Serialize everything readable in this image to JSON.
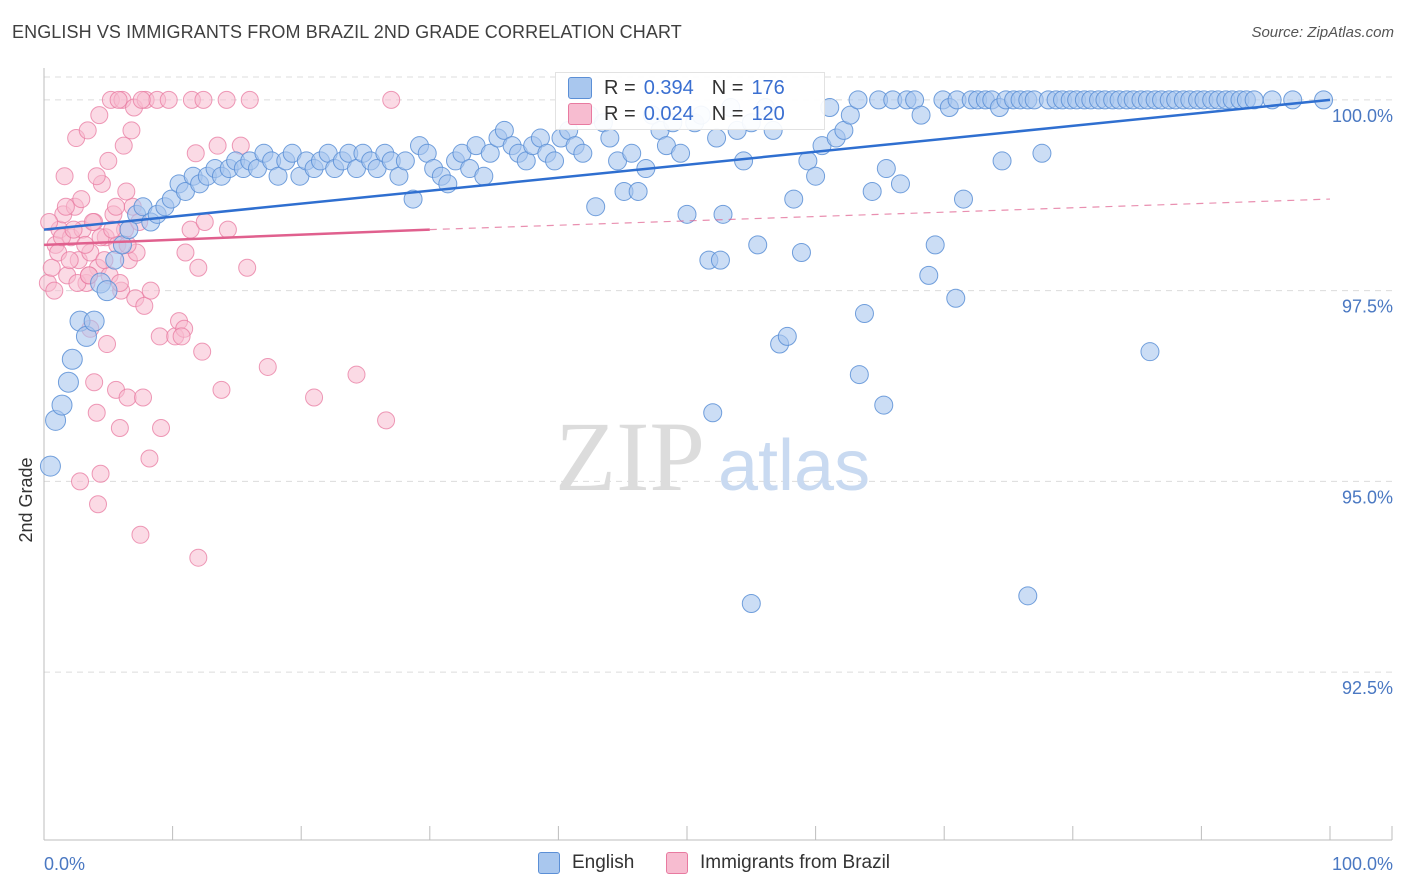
{
  "header": {
    "title": "ENGLISH VS IMMIGRANTS FROM BRAZIL 2ND GRADE CORRELATION CHART",
    "source": "Source: ZipAtlas.com"
  },
  "watermark": {
    "zip": "ZIP",
    "atlas": "atlas"
  },
  "stats": {
    "english": {
      "r_label": "R =",
      "r_value": "0.394",
      "n_label": "N =",
      "n_value": "176"
    },
    "brazil": {
      "r_label": "R =",
      "r_value": "0.024",
      "n_label": "N =",
      "n_value": "120"
    }
  },
  "legend": {
    "english": "English",
    "brazil": "Immigrants from Brazil"
  },
  "colors": {
    "english_fill": "#a9c7ee",
    "english_stroke": "#5b8fd6",
    "english_line": "#2f6fd0",
    "brazil_fill": "#f7bcd0",
    "brazil_stroke": "#e87aa0",
    "brazil_line": "#e0608e",
    "grid": "#dcdcdc",
    "tick_text": "#4a78c2"
  },
  "chart_data": {
    "type": "scatter",
    "title": "ENGLISH VS IMMIGRANTS FROM BRAZIL 2ND GRADE CORRELATION CHART",
    "xlabel": "",
    "ylabel": "2nd Grade",
    "xlim": [
      0,
      100
    ],
    "ylim": [
      90.3,
      100.3
    ],
    "x_tick_labels": [
      "0.0%",
      "100.0%"
    ],
    "y_ticks": [
      {
        "value": 92.5,
        "label": "92.5%"
      },
      {
        "value": 95.0,
        "label": "95.0%"
      },
      {
        "value": 97.5,
        "label": "97.5%"
      },
      {
        "value": 100.0,
        "label": "100.0%"
      }
    ],
    "series": [
      {
        "name": "English",
        "r": 0.394,
        "n": 176,
        "trend": {
          "x": [
            0,
            100
          ],
          "y": [
            98.3,
            100.0
          ]
        },
        "points": [
          [
            0.5,
            95.2
          ],
          [
            0.9,
            95.8
          ],
          [
            1.4,
            96.0
          ],
          [
            1.9,
            96.3
          ],
          [
            2.2,
            96.6
          ],
          [
            2.8,
            97.1
          ],
          [
            3.3,
            96.9
          ],
          [
            3.9,
            97.1
          ],
          [
            4.4,
            97.6
          ],
          [
            4.9,
            97.5
          ],
          [
            5.5,
            97.9
          ],
          [
            6.1,
            98.1
          ],
          [
            6.6,
            98.3
          ],
          [
            7.2,
            98.5
          ],
          [
            7.7,
            98.6
          ],
          [
            8.3,
            98.4
          ],
          [
            8.8,
            98.5
          ],
          [
            9.4,
            98.6
          ],
          [
            9.9,
            98.7
          ],
          [
            10.5,
            98.9
          ],
          [
            11.0,
            98.8
          ],
          [
            11.6,
            99.0
          ],
          [
            12.1,
            98.9
          ],
          [
            12.7,
            99.0
          ],
          [
            13.3,
            99.1
          ],
          [
            13.8,
            99.0
          ],
          [
            14.4,
            99.1
          ],
          [
            14.9,
            99.2
          ],
          [
            15.5,
            99.1
          ],
          [
            16.0,
            99.2
          ],
          [
            16.6,
            99.1
          ],
          [
            17.1,
            99.3
          ],
          [
            17.7,
            99.2
          ],
          [
            18.2,
            99.0
          ],
          [
            18.8,
            99.2
          ],
          [
            19.3,
            99.3
          ],
          [
            19.9,
            99.0
          ],
          [
            20.4,
            99.2
          ],
          [
            21.0,
            99.1
          ],
          [
            21.5,
            99.2
          ],
          [
            22.1,
            99.3
          ],
          [
            22.6,
            99.1
          ],
          [
            23.2,
            99.2
          ],
          [
            23.7,
            99.3
          ],
          [
            24.3,
            99.1
          ],
          [
            24.8,
            99.3
          ],
          [
            25.4,
            99.2
          ],
          [
            25.9,
            99.1
          ],
          [
            26.5,
            99.3
          ],
          [
            27.0,
            99.2
          ],
          [
            27.6,
            99.0
          ],
          [
            28.1,
            99.2
          ],
          [
            28.7,
            98.7
          ],
          [
            29.2,
            99.4
          ],
          [
            29.8,
            99.3
          ],
          [
            30.3,
            99.1
          ],
          [
            30.9,
            99.0
          ],
          [
            31.4,
            98.9
          ],
          [
            32.0,
            99.2
          ],
          [
            32.5,
            99.3
          ],
          [
            33.1,
            99.1
          ],
          [
            33.6,
            99.4
          ],
          [
            34.2,
            99.0
          ],
          [
            34.7,
            99.3
          ],
          [
            35.3,
            99.5
          ],
          [
            35.8,
            99.6
          ],
          [
            36.4,
            99.4
          ],
          [
            36.9,
            99.3
          ],
          [
            37.5,
            99.2
          ],
          [
            38.0,
            99.4
          ],
          [
            38.6,
            99.5
          ],
          [
            39.1,
            99.3
          ],
          [
            39.7,
            99.2
          ],
          [
            40.2,
            99.5
          ],
          [
            40.8,
            99.6
          ],
          [
            41.3,
            99.4
          ],
          [
            41.9,
            99.3
          ],
          [
            42.4,
            99.8
          ],
          [
            42.9,
            98.6
          ],
          [
            43.5,
            99.7
          ],
          [
            44.0,
            99.5
          ],
          [
            44.6,
            99.2
          ],
          [
            45.1,
            98.8
          ],
          [
            45.7,
            99.3
          ],
          [
            46.2,
            98.8
          ],
          [
            46.8,
            99.1
          ],
          [
            47.3,
            99.8
          ],
          [
            47.9,
            99.6
          ],
          [
            48.4,
            99.4
          ],
          [
            48.9,
            99.7
          ],
          [
            49.5,
            99.3
          ],
          [
            50.0,
            98.5
          ],
          [
            50.6,
            99.7
          ],
          [
            51.1,
            99.8
          ],
          [
            51.7,
            97.9
          ],
          [
            52.3,
            99.5
          ],
          [
            52.8,
            98.5
          ],
          [
            53.4,
            99.9
          ],
          [
            53.9,
            99.6
          ],
          [
            54.4,
            99.2
          ],
          [
            55.0,
            99.7
          ],
          [
            55.5,
            98.1
          ],
          [
            56.1,
            99.9
          ],
          [
            56.7,
            99.6
          ],
          [
            57.2,
            96.8
          ],
          [
            57.8,
            96.9
          ],
          [
            58.3,
            98.7
          ],
          [
            58.9,
            98.0
          ],
          [
            59.4,
            99.2
          ],
          [
            60.0,
            99.0
          ],
          [
            60.5,
            99.4
          ],
          [
            61.1,
            99.9
          ],
          [
            61.6,
            99.5
          ],
          [
            62.2,
            99.6
          ],
          [
            62.7,
            99.8
          ],
          [
            63.3,
            100.0
          ],
          [
            63.8,
            97.2
          ],
          [
            64.4,
            98.8
          ],
          [
            64.9,
            100.0
          ],
          [
            65.5,
            99.1
          ],
          [
            66.0,
            100.0
          ],
          [
            66.6,
            98.9
          ],
          [
            67.1,
            100.0
          ],
          [
            67.7,
            100.0
          ],
          [
            68.2,
            99.8
          ],
          [
            68.8,
            97.7
          ],
          [
            69.3,
            98.1
          ],
          [
            69.9,
            100.0
          ],
          [
            70.4,
            99.9
          ],
          [
            71.0,
            100.0
          ],
          [
            71.5,
            98.7
          ],
          [
            72.1,
            100.0
          ],
          [
            72.6,
            100.0
          ],
          [
            73.2,
            100.0
          ],
          [
            73.7,
            100.0
          ],
          [
            74.3,
            99.9
          ],
          [
            74.8,
            100.0
          ],
          [
            75.4,
            100.0
          ],
          [
            75.9,
            100.0
          ],
          [
            76.5,
            100.0
          ],
          [
            77.0,
            100.0
          ],
          [
            77.6,
            99.3
          ],
          [
            78.1,
            100.0
          ],
          [
            78.7,
            100.0
          ],
          [
            79.2,
            100.0
          ],
          [
            79.8,
            100.0
          ],
          [
            80.3,
            100.0
          ],
          [
            80.9,
            100.0
          ],
          [
            81.4,
            100.0
          ],
          [
            82.0,
            100.0
          ],
          [
            82.5,
            100.0
          ],
          [
            83.1,
            100.0
          ],
          [
            83.6,
            100.0
          ],
          [
            84.2,
            100.0
          ],
          [
            84.7,
            100.0
          ],
          [
            85.3,
            100.0
          ],
          [
            85.8,
            100.0
          ],
          [
            86.4,
            100.0
          ],
          [
            86.9,
            100.0
          ],
          [
            87.5,
            100.0
          ],
          [
            88.0,
            100.0
          ],
          [
            88.6,
            100.0
          ],
          [
            89.1,
            100.0
          ],
          [
            89.7,
            100.0
          ],
          [
            90.2,
            100.0
          ],
          [
            90.8,
            100.0
          ],
          [
            91.3,
            100.0
          ],
          [
            91.9,
            100.0
          ],
          [
            92.4,
            100.0
          ],
          [
            93.0,
            100.0
          ],
          [
            93.5,
            100.0
          ],
          [
            94.1,
            100.0
          ],
          [
            95.5,
            100.0
          ],
          [
            97.1,
            100.0
          ],
          [
            99.5,
            100.0
          ],
          [
            86.0,
            96.7
          ],
          [
            76.5,
            93.5
          ],
          [
            55.0,
            93.4
          ],
          [
            63.4,
            96.4
          ],
          [
            52.0,
            95.9
          ],
          [
            65.3,
            96.0
          ],
          [
            70.9,
            97.4
          ],
          [
            74.5,
            99.2
          ],
          [
            52.6,
            97.9
          ]
        ]
      },
      {
        "name": "Immigrants from Brazil",
        "r": 0.024,
        "n": 120,
        "trend": {
          "x": [
            0,
            30
          ],
          "y": [
            98.1,
            98.3
          ]
        },
        "trend_dashed": {
          "x": [
            30,
            100
          ],
          "y": [
            98.3,
            98.7
          ]
        },
        "points": [
          [
            0.3,
            97.6
          ],
          [
            0.6,
            97.8
          ],
          [
            0.9,
            98.1
          ],
          [
            1.2,
            98.3
          ],
          [
            1.5,
            98.5
          ],
          [
            1.8,
            97.7
          ],
          [
            2.1,
            98.2
          ],
          [
            2.4,
            98.6
          ],
          [
            2.7,
            97.9
          ],
          [
            3.0,
            98.3
          ],
          [
            3.3,
            97.6
          ],
          [
            3.6,
            98.0
          ],
          [
            3.9,
            98.4
          ],
          [
            4.2,
            97.8
          ],
          [
            4.5,
            98.9
          ],
          [
            4.8,
            98.2
          ],
          [
            5.1,
            97.7
          ],
          [
            5.4,
            98.5
          ],
          [
            5.7,
            98.1
          ],
          [
            6.0,
            97.5
          ],
          [
            6.3,
            98.3
          ],
          [
            6.6,
            97.9
          ],
          [
            6.9,
            98.6
          ],
          [
            7.2,
            98.0
          ],
          [
            0.4,
            98.4
          ],
          [
            0.8,
            97.5
          ],
          [
            1.1,
            98.0
          ],
          [
            1.4,
            98.2
          ],
          [
            1.7,
            98.6
          ],
          [
            2.0,
            97.9
          ],
          [
            2.3,
            98.3
          ],
          [
            2.6,
            97.6
          ],
          [
            2.9,
            98.7
          ],
          [
            3.2,
            98.1
          ],
          [
            3.5,
            97.7
          ],
          [
            3.8,
            98.4
          ],
          [
            4.1,
            99.0
          ],
          [
            4.4,
            98.2
          ],
          [
            4.7,
            97.9
          ],
          [
            5.0,
            99.2
          ],
          [
            5.3,
            98.3
          ],
          [
            5.6,
            98.6
          ],
          [
            5.9,
            97.6
          ],
          [
            6.2,
            99.4
          ],
          [
            6.5,
            98.1
          ],
          [
            6.8,
            99.6
          ],
          [
            7.1,
            97.4
          ],
          [
            7.4,
            98.4
          ],
          [
            1.6,
            99.0
          ],
          [
            2.5,
            99.5
          ],
          [
            3.4,
            99.6
          ],
          [
            4.3,
            99.8
          ],
          [
            5.2,
            100.0
          ],
          [
            6.1,
            100.0
          ],
          [
            7.0,
            99.9
          ],
          [
            7.9,
            100.0
          ],
          [
            8.8,
            100.0
          ],
          [
            9.7,
            100.0
          ],
          [
            11.5,
            100.0
          ],
          [
            12.4,
            100.0
          ],
          [
            14.2,
            100.0
          ],
          [
            16.0,
            100.0
          ],
          [
            27.0,
            100.0
          ],
          [
            5.8,
            100.0
          ],
          [
            7.6,
            100.0
          ],
          [
            11.8,
            99.3
          ],
          [
            13.5,
            99.4
          ],
          [
            15.3,
            99.4
          ],
          [
            6.4,
            98.8
          ],
          [
            4.9,
            96.8
          ],
          [
            3.6,
            97.0
          ],
          [
            7.8,
            97.3
          ],
          [
            8.3,
            97.5
          ],
          [
            9.0,
            96.9
          ],
          [
            10.2,
            96.9
          ],
          [
            10.5,
            97.1
          ],
          [
            11.0,
            98.0
          ],
          [
            11.4,
            98.3
          ],
          [
            12.0,
            97.8
          ],
          [
            12.5,
            98.4
          ],
          [
            14.3,
            98.3
          ],
          [
            15.8,
            97.8
          ],
          [
            3.9,
            96.3
          ],
          [
            5.6,
            96.2
          ],
          [
            6.5,
            96.1
          ],
          [
            7.7,
            96.1
          ],
          [
            9.1,
            95.7
          ],
          [
            8.2,
            95.3
          ],
          [
            4.1,
            95.9
          ],
          [
            5.9,
            95.7
          ],
          [
            2.8,
            95.0
          ],
          [
            4.4,
            95.1
          ],
          [
            4.2,
            94.7
          ],
          [
            7.5,
            94.3
          ],
          [
            12.0,
            94.0
          ],
          [
            17.4,
            96.5
          ],
          [
            21.0,
            96.1
          ],
          [
            24.3,
            96.4
          ],
          [
            26.6,
            95.8
          ],
          [
            10.9,
            97.0
          ],
          [
            10.7,
            96.9
          ],
          [
            12.3,
            96.7
          ],
          [
            13.8,
            96.2
          ],
          [
            3.5,
            97.7
          ]
        ]
      }
    ]
  }
}
